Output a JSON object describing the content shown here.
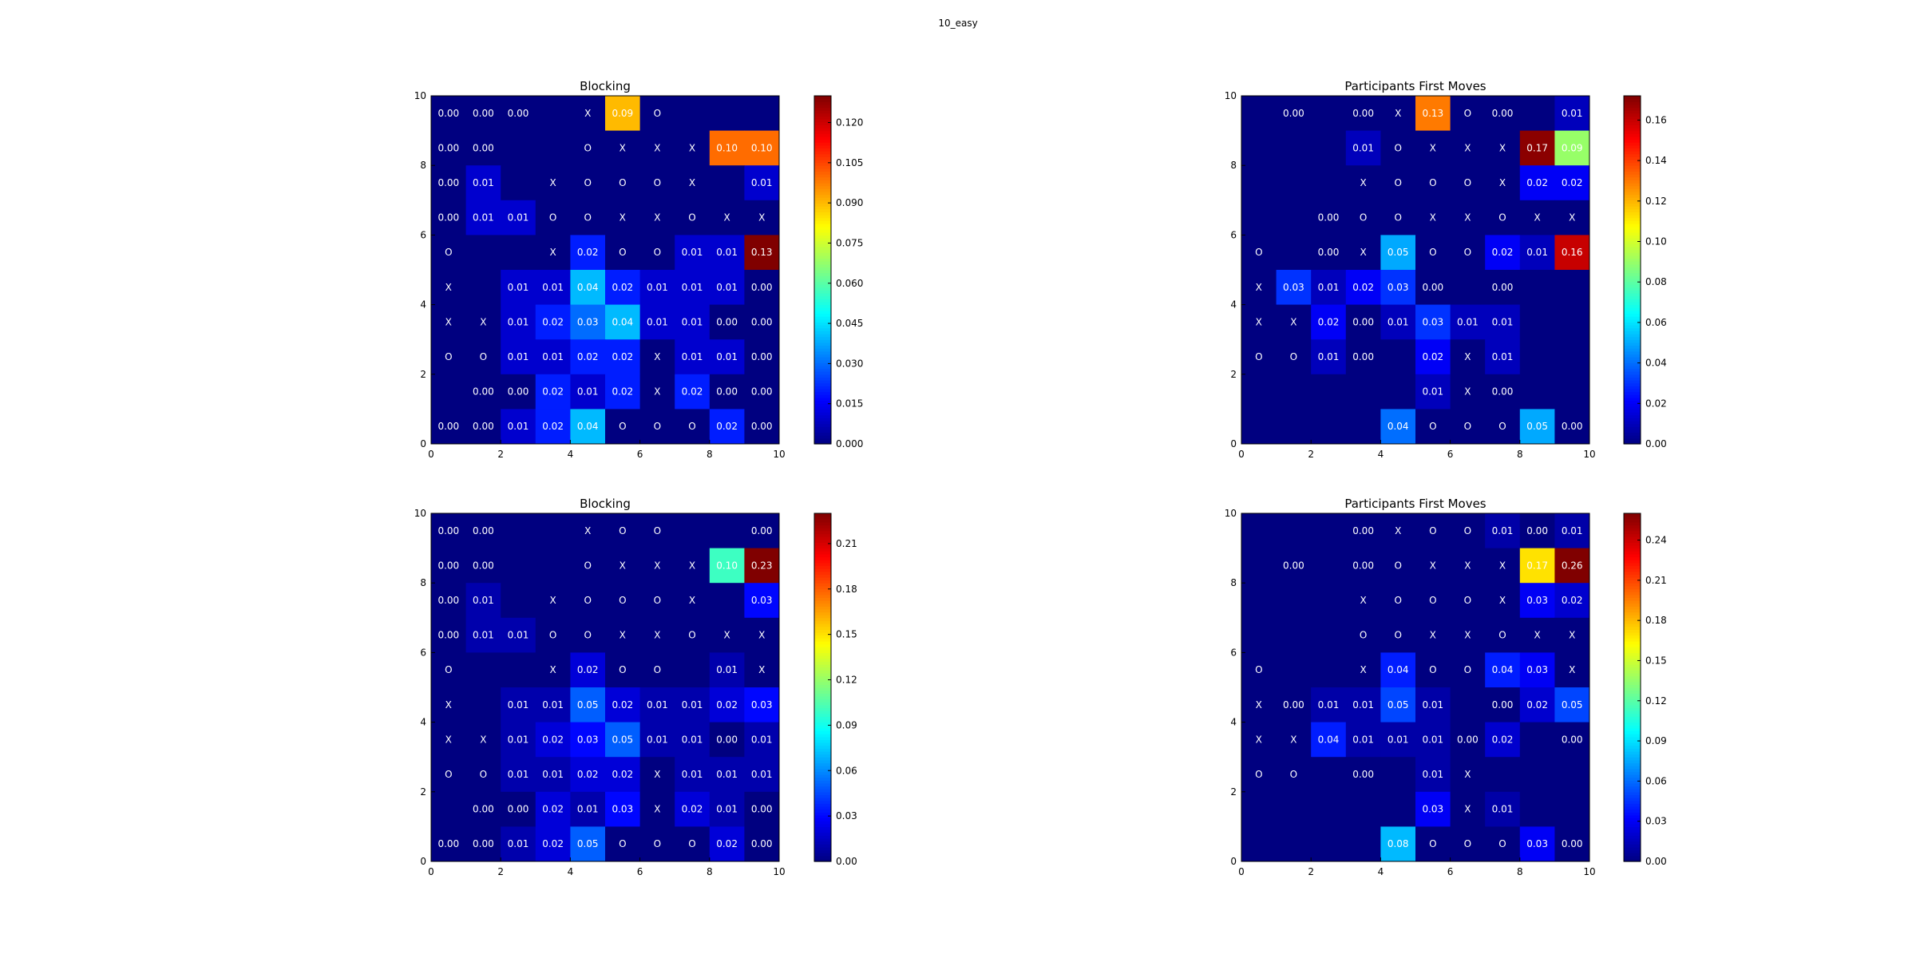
{
  "suptitle": "10_easy",
  "chart_data": [
    {
      "type": "heatmap",
      "title": "Blocking",
      "xlim": [
        0,
        10
      ],
      "ylim": [
        0,
        10
      ],
      "xticks": [
        "0",
        "2",
        "4",
        "6",
        "8",
        "10"
      ],
      "yticks": [
        "0",
        "2",
        "4",
        "6",
        "8",
        "10"
      ],
      "colorbar": {
        "min": 0,
        "max": 0.13,
        "ticks": [
          "0.000",
          "0.015",
          "0.030",
          "0.045",
          "0.060",
          "0.075",
          "0.090",
          "0.105",
          "0.120"
        ]
      },
      "rows_top_to_bottom": [
        [
          "0.00",
          "0.00",
          "0.00",
          "",
          "X",
          "0.09",
          "O",
          "",
          "",
          ""
        ],
        [
          "0.00",
          "0.00",
          "",
          "",
          "O",
          "X",
          "X",
          "X",
          "0.10",
          "0.10"
        ],
        [
          "0.00",
          "0.01",
          "",
          "X",
          "O",
          "O",
          "O",
          "X",
          "",
          "0.01"
        ],
        [
          "0.00",
          "0.01",
          "0.01",
          "O",
          "O",
          "X",
          "X",
          "O",
          "X",
          "X"
        ],
        [
          "O",
          "",
          "",
          "X",
          "0.02",
          "O",
          "O",
          "0.01",
          "0.01",
          "0.13"
        ],
        [
          "X",
          "",
          "0.01",
          "0.01",
          "0.04",
          "0.02",
          "0.01",
          "0.01",
          "0.01",
          "0.00"
        ],
        [
          "X",
          "X",
          "0.01",
          "0.02",
          "0.03",
          "0.04",
          "0.01",
          "0.01",
          "0.00",
          "0.00"
        ],
        [
          "O",
          "O",
          "0.01",
          "0.01",
          "0.02",
          "0.02",
          "X",
          "0.01",
          "0.01",
          "0.00"
        ],
        [
          "",
          "0.00",
          "0.00",
          "0.02",
          "0.01",
          "0.02",
          "X",
          "0.02",
          "0.00",
          "0.00"
        ],
        [
          "0.00",
          "0.00",
          "0.01",
          "0.02",
          "0.04",
          "O",
          "O",
          "O",
          "0.02",
          "0.00"
        ]
      ]
    },
    {
      "type": "heatmap",
      "title": "Participants First Moves",
      "xlim": [
        0,
        10
      ],
      "ylim": [
        0,
        10
      ],
      "xticks": [
        "0",
        "2",
        "4",
        "6",
        "8",
        "10"
      ],
      "yticks": [
        "0",
        "2",
        "4",
        "6",
        "8",
        "10"
      ],
      "colorbar": {
        "min": 0,
        "max": 0.172,
        "ticks": [
          "0.00",
          "0.02",
          "0.04",
          "0.06",
          "0.08",
          "0.10",
          "0.12",
          "0.14",
          "0.16"
        ]
      },
      "rows_top_to_bottom": [
        [
          "",
          "0.00",
          "",
          "0.00",
          "X",
          "0.13",
          "O",
          "0.00",
          "",
          "0.01"
        ],
        [
          "",
          "",
          "",
          "0.01",
          "O",
          "X",
          "X",
          "X",
          "0.17",
          "0.09"
        ],
        [
          "",
          "",
          "",
          "X",
          "O",
          "O",
          "O",
          "X",
          "0.02",
          "0.02"
        ],
        [
          "",
          "",
          "0.00",
          "O",
          "O",
          "X",
          "X",
          "O",
          "X",
          "X"
        ],
        [
          "O",
          "",
          "0.00",
          "X",
          "0.05",
          "O",
          "O",
          "0.02",
          "0.01",
          "0.16"
        ],
        [
          "X",
          "0.03",
          "0.01",
          "0.02",
          "0.03",
          "0.00",
          "",
          "0.00",
          "",
          ""
        ],
        [
          "X",
          "X",
          "0.02",
          "0.00",
          "0.01",
          "0.03",
          "0.01",
          "0.01",
          "",
          ""
        ],
        [
          "O",
          "O",
          "0.01",
          "0.00",
          "",
          "0.02",
          "X",
          "0.01",
          "",
          ""
        ],
        [
          "",
          "",
          "",
          "",
          "",
          "0.01",
          "X",
          "0.00",
          "",
          ""
        ],
        [
          "",
          "",
          "",
          "",
          "0.04",
          "O",
          "O",
          "O",
          "0.05",
          "0.00"
        ]
      ]
    },
    {
      "type": "heatmap",
      "title": "Blocking",
      "xlim": [
        0,
        10
      ],
      "ylim": [
        0,
        10
      ],
      "xticks": [
        "0",
        "2",
        "4",
        "6",
        "8",
        "10"
      ],
      "yticks": [
        "0",
        "2",
        "4",
        "6",
        "8",
        "10"
      ],
      "colorbar": {
        "min": 0,
        "max": 0.23,
        "ticks": [
          "0.00",
          "0.03",
          "0.06",
          "0.09",
          "0.12",
          "0.15",
          "0.18",
          "0.21"
        ]
      },
      "rows_top_to_bottom": [
        [
          "0.00",
          "0.00",
          "",
          "",
          "X",
          "O",
          "O",
          "",
          "",
          "0.00"
        ],
        [
          "0.00",
          "0.00",
          "",
          "",
          "O",
          "X",
          "X",
          "X",
          "0.10",
          "0.23"
        ],
        [
          "0.00",
          "0.01",
          "",
          "X",
          "O",
          "O",
          "O",
          "X",
          "",
          "0.03"
        ],
        [
          "0.00",
          "0.01",
          "0.01",
          "O",
          "O",
          "X",
          "X",
          "O",
          "X",
          "X"
        ],
        [
          "O",
          "",
          "",
          "X",
          "0.02",
          "O",
          "O",
          "",
          "0.01",
          "X"
        ],
        [
          "X",
          "",
          "0.01",
          "0.01",
          "0.05",
          "0.02",
          "0.01",
          "0.01",
          "0.02",
          "0.03"
        ],
        [
          "X",
          "X",
          "0.01",
          "0.02",
          "0.03",
          "0.05",
          "0.01",
          "0.01",
          "0.00",
          "0.01"
        ],
        [
          "O",
          "O",
          "0.01",
          "0.01",
          "0.02",
          "0.02",
          "X",
          "0.01",
          "0.01",
          "0.01"
        ],
        [
          "",
          "0.00",
          "0.00",
          "0.02",
          "0.01",
          "0.03",
          "X",
          "0.02",
          "0.01",
          "0.00"
        ],
        [
          "0.00",
          "0.00",
          "0.01",
          "0.02",
          "0.05",
          "O",
          "O",
          "O",
          "0.02",
          "0.00"
        ]
      ]
    },
    {
      "type": "heatmap",
      "title": "Participants First Moves",
      "xlim": [
        0,
        10
      ],
      "ylim": [
        0,
        10
      ],
      "xticks": [
        "0",
        "2",
        "4",
        "6",
        "8",
        "10"
      ],
      "yticks": [
        "0",
        "2",
        "4",
        "6",
        "8",
        "10"
      ],
      "colorbar": {
        "min": 0,
        "max": 0.26,
        "ticks": [
          "0.00",
          "0.03",
          "0.06",
          "0.09",
          "0.12",
          "0.15",
          "0.18",
          "0.21",
          "0.24"
        ]
      },
      "rows_top_to_bottom": [
        [
          "",
          "",
          "",
          "0.00",
          "X",
          "O",
          "O",
          "0.01",
          "0.00",
          "0.01"
        ],
        [
          "",
          "0.00",
          "",
          "0.00",
          "O",
          "X",
          "X",
          "X",
          "0.17",
          "0.26"
        ],
        [
          "",
          "",
          "",
          "X",
          "O",
          "O",
          "O",
          "X",
          "0.03",
          "0.02"
        ],
        [
          "",
          "",
          "",
          "O",
          "O",
          "X",
          "X",
          "O",
          "X",
          "X"
        ],
        [
          "O",
          "",
          "",
          "X",
          "0.04",
          "O",
          "O",
          "0.04",
          "0.03",
          "X"
        ],
        [
          "X",
          "0.00",
          "0.01",
          "0.01",
          "0.05",
          "0.01",
          "",
          "0.00",
          "0.02",
          "0.05"
        ],
        [
          "X",
          "X",
          "0.04",
          "0.01",
          "0.01",
          "0.01",
          "0.00",
          "0.02",
          "",
          "0.00"
        ],
        [
          "O",
          "O",
          "",
          "0.00",
          "",
          "0.01",
          "X",
          "",
          "",
          ""
        ],
        [
          "",
          "",
          "",
          "",
          "",
          "0.03",
          "X",
          "0.01",
          "",
          ""
        ],
        [
          "",
          "",
          "",
          "",
          "0.08",
          "O",
          "O",
          "O",
          "0.03",
          "0.00"
        ]
      ]
    }
  ]
}
